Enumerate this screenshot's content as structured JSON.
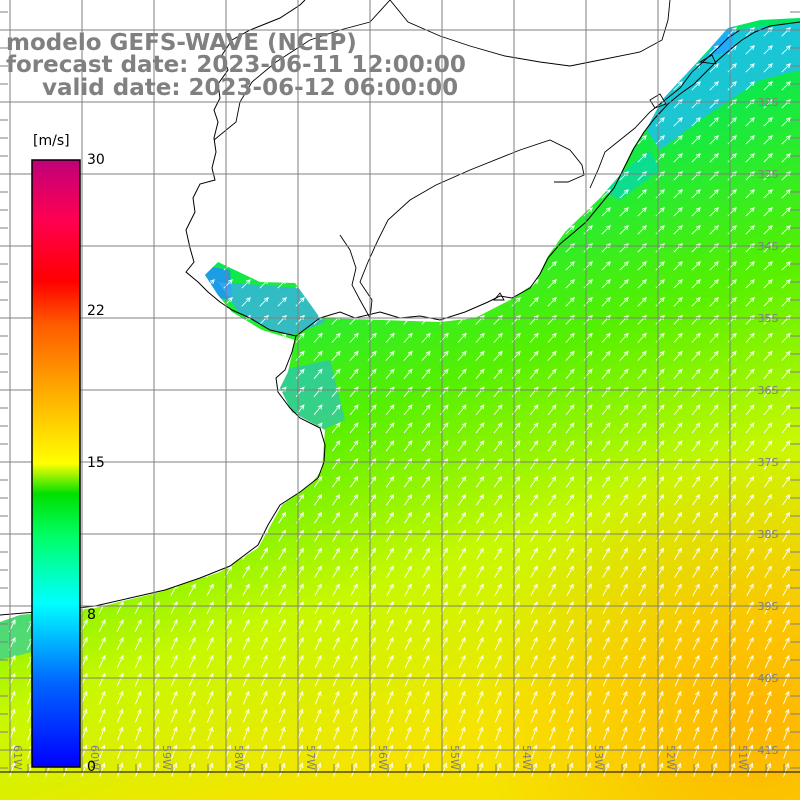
{
  "header": {
    "line1": "modelo GEFS-WAVE (NCEP)",
    "line2": "forecast date: 2023-06-11 12:00:00",
    "line3": "valid date: 2023-06-12 06:00:00"
  },
  "colorbar": {
    "unit": "[m/s]",
    "ticks": [
      "30",
      "22",
      "15",
      "8",
      "0"
    ],
    "tick_values": [
      30,
      22,
      15,
      8,
      0
    ],
    "min": 0,
    "max": 30,
    "colors": [
      "#0000ff",
      "#0066ff",
      "#00ccff",
      "#00ffcc",
      "#00ff66",
      "#00e400",
      "#66ff00",
      "#ccff00",
      "#ffff00",
      "#ffcc00",
      "#ff8000",
      "#ff4000",
      "#ff0000",
      "#e0005a",
      "#c0007a"
    ]
  },
  "map": {
    "lat_labels": [
      "32S",
      "33S",
      "34S",
      "35S",
      "36S",
      "37S",
      "38S",
      "39S",
      "40S",
      "41S"
    ],
    "lon_labels": [
      "61W",
      "60W",
      "59W",
      "58W",
      "57W",
      "56W",
      "55W",
      "54W",
      "53W",
      "52W",
      "51W"
    ],
    "land_color": "#ffffff",
    "grid_color": "#7f7f7f",
    "coast_color": "#000000",
    "arrow_color": "#ffffff"
  }
}
